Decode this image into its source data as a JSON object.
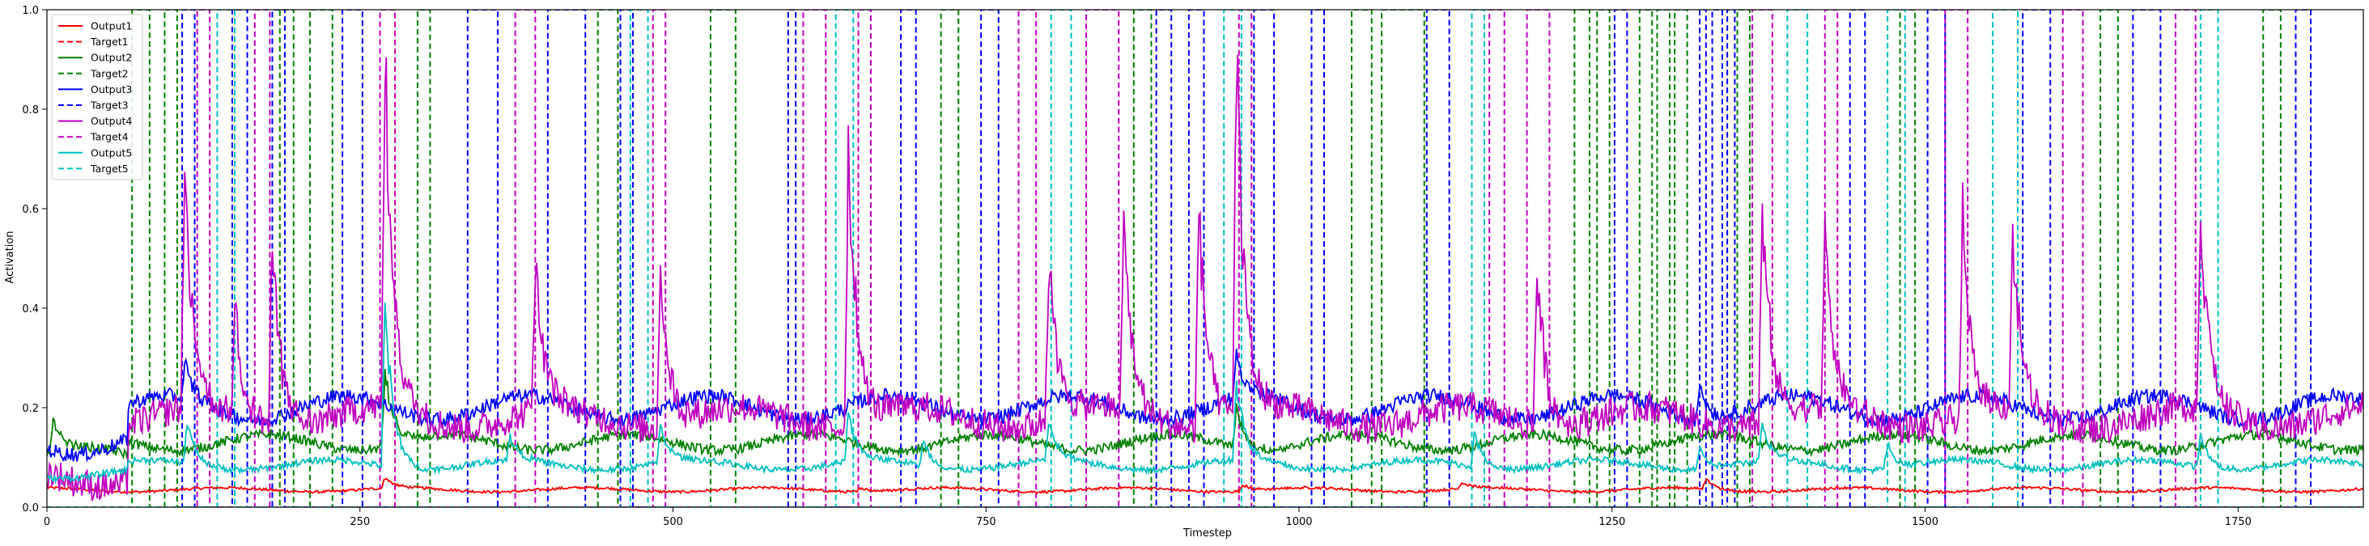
{
  "chart_data": {
    "type": "line",
    "title": "",
    "xlabel": "Timestep",
    "ylabel": "Activation",
    "xlim": [
      0,
      1850
    ],
    "ylim": [
      0,
      1.0
    ],
    "xticks": [
      0,
      250,
      500,
      750,
      1000,
      1250,
      1500,
      1750
    ],
    "yticks": [
      0.0,
      0.2,
      0.4,
      0.6,
      0.8,
      1.0
    ],
    "grid": false,
    "legend_position": "top-left",
    "legend": [
      {
        "name": "Output1",
        "color": "#ff0000",
        "style": "solid"
      },
      {
        "name": "Target1",
        "color": "#ff0000",
        "style": "dashed"
      },
      {
        "name": "Output2",
        "color": "#008000",
        "style": "solid"
      },
      {
        "name": "Target2",
        "color": "#008000",
        "style": "dashed"
      },
      {
        "name": "Output3",
        "color": "#0000ff",
        "style": "solid"
      },
      {
        "name": "Target3",
        "color": "#0000ff",
        "style": "dashed"
      },
      {
        "name": "Output4",
        "color": "#bf00bf",
        "style": "solid"
      },
      {
        "name": "Target4",
        "color": "#bf00bf",
        "style": "dashed"
      },
      {
        "name": "Output5",
        "color": "#00bfbf",
        "style": "solid"
      },
      {
        "name": "Target5",
        "color": "#00bfbf",
        "style": "dashed"
      }
    ],
    "targets": [
      {
        "name": "Target2",
        "color": "#008000",
        "pulses": [
          [
            68,
            82
          ],
          [
            94,
            104
          ],
          [
            186,
            197
          ],
          [
            210,
            228
          ],
          [
            296,
            306
          ],
          [
            440,
            456
          ],
          [
            530,
            550
          ],
          [
            714,
            728
          ],
          [
            868,
            882
          ],
          [
            1042,
            1058
          ],
          [
            1066,
            1100
          ],
          [
            1220,
            1232
          ],
          [
            1238,
            1248
          ],
          [
            1272,
            1282
          ],
          [
            1286,
            1296
          ],
          [
            1300,
            1310
          ],
          [
            1350,
            1360
          ],
          [
            1480,
            1492
          ],
          [
            1640,
            1654
          ],
          [
            1770,
            1784
          ]
        ]
      },
      {
        "name": "Target3",
        "color": "#0000ff",
        "pulses": [
          [
            108,
            118
          ],
          [
            148,
            160
          ],
          [
            180,
            190
          ],
          [
            236,
            252
          ],
          [
            336,
            360
          ],
          [
            400,
            430
          ],
          [
            458,
            468
          ],
          [
            592,
            598
          ],
          [
            682,
            694
          ],
          [
            746,
            760
          ],
          [
            886,
            898
          ],
          [
            912,
            924
          ],
          [
            964,
            980
          ],
          [
            1010,
            1020
          ],
          [
            1102,
            1120
          ],
          [
            1252,
            1262
          ],
          [
            1320,
            1325
          ],
          [
            1330,
            1338
          ],
          [
            1342,
            1348
          ],
          [
            1440,
            1452
          ],
          [
            1502,
            1516
          ],
          [
            1578,
            1600
          ],
          [
            1666,
            1688
          ],
          [
            1796,
            1808
          ]
        ]
      },
      {
        "name": "Target4",
        "color": "#bf00bf",
        "pulses": [
          [
            120,
            130
          ],
          [
            166,
            178
          ],
          [
            266,
            278
          ],
          [
            374,
            390
          ],
          [
            484,
            494
          ],
          [
            604,
            622
          ],
          [
            648,
            658
          ],
          [
            776,
            790
          ],
          [
            830,
            856
          ],
          [
            952,
            962
          ],
          [
            1152,
            1164
          ],
          [
            1182,
            1200
          ],
          [
            1362,
            1378
          ],
          [
            1420,
            1430
          ],
          [
            1516,
            1534
          ],
          [
            1610,
            1626
          ],
          [
            1700,
            1716
          ]
        ]
      },
      {
        "name": "Target5",
        "color": "#00bfbf",
        "pulses": [
          [
            136,
            150
          ],
          [
            466,
            480
          ],
          [
            630,
            644
          ],
          [
            802,
            818
          ],
          [
            940,
            954
          ],
          [
            1138,
            1148
          ],
          [
            1390,
            1406
          ],
          [
            1470,
            1484
          ],
          [
            1554,
            1574
          ],
          [
            1720,
            1734
          ]
        ]
      }
    ],
    "outputs": [
      {
        "name": "Output1",
        "color": "#ff0000",
        "baseline": 0.035,
        "spikes": [
          [
            270,
            0.06
          ],
          [
            650,
            0.045
          ],
          [
            955,
            0.05
          ],
          [
            1130,
            0.05
          ],
          [
            1325,
            0.06
          ]
        ]
      },
      {
        "name": "Output2",
        "color": "#008000",
        "baseline": 0.13,
        "spikes": [
          [
            5,
            0.2
          ],
          [
            270,
            0.3
          ],
          [
            950,
            0.22
          ]
        ]
      },
      {
        "name": "Output3",
        "color": "#0000ff",
        "baseline": 0.2,
        "spikes": [
          [
            110,
            0.28
          ],
          [
            950,
            0.3
          ],
          [
            1320,
            0.28
          ]
        ]
      },
      {
        "name": "Output4",
        "color": "#bf00bf",
        "baseline": 0.18,
        "spikes": [
          [
            110,
            0.72
          ],
          [
            150,
            0.43
          ],
          [
            180,
            0.62
          ],
          [
            270,
            0.96
          ],
          [
            390,
            0.53
          ],
          [
            490,
            0.55
          ],
          [
            640,
            0.82
          ],
          [
            800,
            0.56
          ],
          [
            860,
            0.61
          ],
          [
            920,
            0.7
          ],
          [
            950,
            1.0
          ],
          [
            1190,
            0.55
          ],
          [
            1370,
            0.68
          ],
          [
            1420,
            0.58
          ],
          [
            1530,
            0.62
          ],
          [
            1570,
            0.57
          ],
          [
            1720,
            0.63
          ],
          [
            1850,
            0.2
          ]
        ]
      },
      {
        "name": "Output5",
        "color": "#00bfbf",
        "baseline": 0.085,
        "spikes": [
          [
            112,
            0.18
          ],
          [
            270,
            0.45
          ],
          [
            370,
            0.14
          ],
          [
            490,
            0.17
          ],
          [
            640,
            0.2
          ],
          [
            700,
            0.14
          ],
          [
            800,
            0.17
          ],
          [
            950,
            0.27
          ],
          [
            1140,
            0.16
          ],
          [
            1320,
            0.13
          ],
          [
            1370,
            0.17
          ],
          [
            1470,
            0.14
          ],
          [
            1720,
            0.16
          ]
        ]
      }
    ]
  }
}
